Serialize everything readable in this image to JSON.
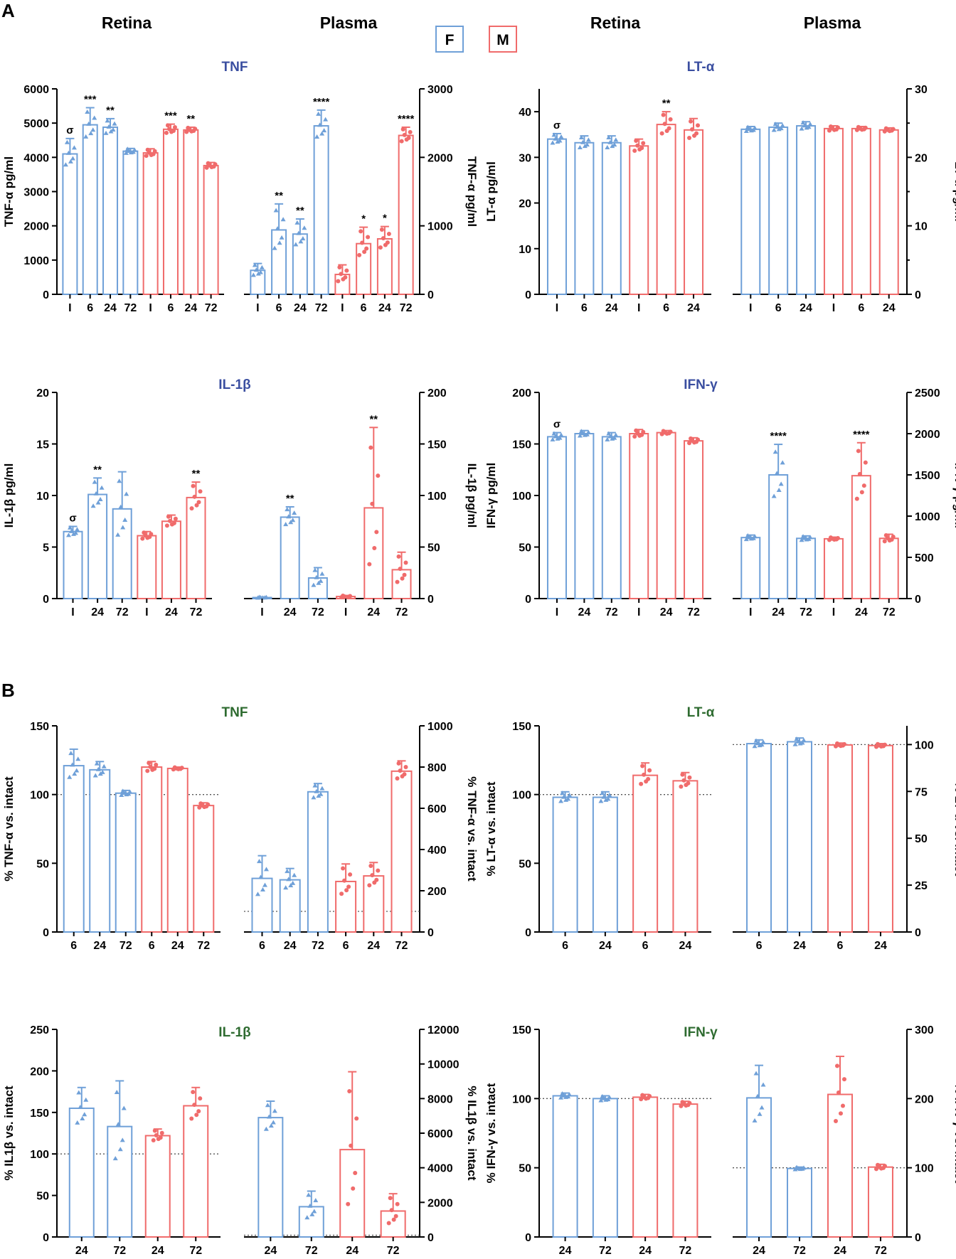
{
  "figure": {
    "panel_labels": [
      "A",
      "B"
    ],
    "column_headers": [
      "Retina",
      "Plasma",
      "Retina",
      "Plasma"
    ],
    "legend": [
      {
        "label": "F",
        "color": "#6fa0d8"
      },
      {
        "label": "M",
        "color": "#f06b6b"
      }
    ],
    "colors": {
      "female": "#6fa0d8",
      "male": "#f06b6b",
      "title_blue": "#3a4ea0",
      "title_green": "#2e6b30"
    }
  },
  "chart_data": [
    {
      "id": "A-TNF",
      "type": "bar",
      "title": "TNF",
      "title_color": "blue",
      "left": {
        "ylabel": "TNF-α pg/ml",
        "ylim": [
          0,
          6000
        ],
        "ticks": [
          0,
          1000,
          2000,
          3000,
          4000,
          5000,
          6000
        ],
        "categories": [
          "I",
          "6",
          "24",
          "72",
          "I",
          "6",
          "24",
          "72"
        ],
        "sex": [
          "F",
          "F",
          "F",
          "F",
          "M",
          "M",
          "M",
          "M"
        ],
        "values": [
          4100,
          4950,
          4880,
          4180,
          4130,
          4820,
          4800,
          3760
        ],
        "err": [
          450,
          500,
          250,
          80,
          120,
          150,
          80,
          90
        ],
        "sig": [
          "σ",
          "***",
          "**",
          "",
          "",
          "***",
          "**",
          ""
        ]
      },
      "right": {
        "ylabel": "TNF-α pg/ml",
        "ylim": [
          0,
          3000
        ],
        "ticks": [
          0,
          1000,
          2000,
          3000
        ],
        "categories": [
          "I",
          "6",
          "24",
          "72",
          "I",
          "6",
          "24",
          "72"
        ],
        "sex": [
          "F",
          "F",
          "F",
          "F",
          "M",
          "M",
          "M",
          "M"
        ],
        "values": [
          350,
          940,
          880,
          2460,
          290,
          740,
          810,
          2320
        ],
        "err": [
          100,
          380,
          220,
          230,
          140,
          240,
          180,
          120
        ],
        "sig": [
          "",
          "**",
          "**",
          "****",
          "",
          "*",
          "*",
          "****"
        ]
      }
    },
    {
      "id": "A-LTa",
      "type": "bar",
      "title": "LT-α",
      "title_color": "blue",
      "left": {
        "ylabel": "LT-α pg/ml",
        "ylim": [
          0,
          45
        ],
        "ticks": [
          0,
          10,
          20,
          30,
          40
        ],
        "categories": [
          "I",
          "6",
          "24",
          "I",
          "6",
          "24"
        ],
        "sex": [
          "F",
          "F",
          "F",
          "M",
          "M",
          "M"
        ],
        "values": [
          34,
          33.2,
          33.2,
          32.5,
          37.2,
          36
        ],
        "err": [
          1.2,
          1.5,
          1.5,
          1.5,
          2.8,
          2.5
        ],
        "sig": [
          "σ",
          "",
          "",
          "",
          "**",
          ""
        ]
      },
      "right": {
        "ylabel": "LT-α pg/ml",
        "ylim": [
          0,
          30
        ],
        "ticks": [
          0,
          10,
          20,
          30
        ],
        "categories": [
          "I",
          "6",
          "24",
          "I",
          "6",
          "24"
        ],
        "sex": [
          "F",
          "F",
          "F",
          "M",
          "M",
          "M"
        ],
        "values": [
          24.1,
          24.4,
          24.6,
          24.2,
          24.2,
          24.0
        ],
        "err": [
          0.4,
          0.6,
          0.6,
          0.4,
          0.3,
          0.3
        ],
        "sig": [
          "",
          "",
          "",
          "",
          "",
          ""
        ]
      }
    },
    {
      "id": "A-IL1b",
      "type": "bar",
      "title": "IL-1β",
      "title_color": "blue",
      "left": {
        "ylabel": "IL-1β pg/ml",
        "ylim": [
          0,
          20
        ],
        "ticks": [
          0,
          5,
          10,
          15,
          20
        ],
        "categories": [
          "I",
          "24",
          "72",
          "I",
          "24",
          "72"
        ],
        "sex": [
          "F",
          "F",
          "F",
          "M",
          "M",
          "M"
        ],
        "values": [
          6.5,
          10.1,
          8.7,
          6.1,
          7.5,
          9.8
        ],
        "err": [
          0.5,
          1.6,
          3.6,
          0.4,
          0.6,
          1.5
        ],
        "sig": [
          "σ",
          "**",
          "",
          "",
          "",
          "**"
        ]
      },
      "right": {
        "ylabel": "IL-1β pg/ml",
        "ylim": [
          0,
          200
        ],
        "ticks": [
          0,
          50,
          100,
          150,
          200
        ],
        "categories": [
          "I",
          "24",
          "72",
          "I",
          "24",
          "72"
        ],
        "sex": [
          "F",
          "F",
          "F",
          "M",
          "M",
          "M"
        ],
        "values": [
          1,
          79,
          20,
          2,
          88,
          28
        ],
        "err": [
          0.5,
          10,
          10,
          1,
          78,
          17
        ],
        "sig": [
          "",
          "**",
          "",
          "",
          "**",
          ""
        ]
      }
    },
    {
      "id": "A-IFNg",
      "type": "bar",
      "title": "IFN-γ",
      "title_color": "blue",
      "left": {
        "ylabel": "IFN-γ pg/ml",
        "ylim": [
          0,
          200
        ],
        "ticks": [
          0,
          50,
          100,
          150,
          200
        ],
        "categories": [
          "I",
          "24",
          "72",
          "I",
          "24",
          "72"
        ],
        "sex": [
          "F",
          "F",
          "F",
          "M",
          "M",
          "M"
        ],
        "values": [
          157,
          160,
          157,
          160,
          161,
          153
        ],
        "err": [
          4,
          3,
          4,
          4,
          2,
          3
        ],
        "sig": [
          "σ",
          "",
          "",
          "",
          "",
          ""
        ]
      },
      "right": {
        "ylabel": "IFN-γ pg/ml",
        "ylim": [
          0,
          2500
        ],
        "ticks": [
          0,
          500,
          1000,
          1500,
          2000,
          2500
        ],
        "categories": [
          "I",
          "24",
          "72",
          "I",
          "24",
          "72"
        ],
        "sex": [
          "F",
          "F",
          "F",
          "M",
          "M",
          "M"
        ],
        "values": [
          740,
          1500,
          730,
          725,
          1490,
          730
        ],
        "err": [
          30,
          370,
          30,
          20,
          400,
          50
        ],
        "sig": [
          "",
          "****",
          "",
          "",
          "****",
          ""
        ]
      }
    },
    {
      "id": "B-TNF",
      "type": "bar",
      "title": "TNF",
      "title_color": "green",
      "left": {
        "ylabel": "% TNF-α vs. intact",
        "ylim": [
          0,
          150
        ],
        "ticks": [
          0,
          50,
          100,
          150
        ],
        "ref": 100,
        "categories": [
          "6",
          "24",
          "72",
          "6",
          "24",
          "72"
        ],
        "sex": [
          "F",
          "F",
          "F",
          "M",
          "M",
          "M"
        ],
        "values": [
          121,
          118,
          101,
          120,
          119,
          92
        ],
        "err": [
          12,
          6,
          2,
          4,
          1,
          2
        ],
        "sig": [
          "",
          "",
          "",
          "",
          "",
          ""
        ]
      },
      "right": {
        "ylabel": "% TNF-α vs. intact",
        "ylim": [
          0,
          1000
        ],
        "ticks": [
          0,
          200,
          400,
          600,
          800,
          1000
        ],
        "ref": 100,
        "categories": [
          "6",
          "24",
          "72",
          "6",
          "24",
          "72"
        ],
        "sex": [
          "F",
          "F",
          "F",
          "M",
          "M",
          "M"
        ],
        "values": [
          260,
          253,
          680,
          245,
          272,
          780
        ],
        "err": [
          110,
          55,
          40,
          85,
          65,
          50
        ],
        "sig": [
          "",
          "",
          "",
          "",
          "",
          ""
        ]
      }
    },
    {
      "id": "B-LTa",
      "type": "bar",
      "title": "LT-α",
      "title_color": "green",
      "left": {
        "ylabel": "% LT-α vs. intact",
        "ylim": [
          0,
          150
        ],
        "ticks": [
          0,
          50,
          100,
          150
        ],
        "ref": 100,
        "categories": [
          "6",
          "24",
          "6",
          "24"
        ],
        "sex": [
          "F",
          "F",
          "M",
          "M"
        ],
        "values": [
          98,
          98,
          114,
          110
        ],
        "err": [
          4,
          4,
          9,
          6
        ],
        "sig": [
          "",
          "",
          "",
          ""
        ]
      },
      "right": {
        "ylabel": "% LT-α vs. intact",
        "ylim": [
          0,
          110
        ],
        "ticks": [
          0,
          25,
          50,
          75,
          100
        ],
        "ref": 100,
        "categories": [
          "6",
          "24",
          "6",
          "24"
        ],
        "sex": [
          "F",
          "F",
          "M",
          "M"
        ],
        "values": [
          100.5,
          101.5,
          99.8,
          99.5
        ],
        "err": [
          2,
          2,
          1,
          1
        ],
        "sig": [
          "",
          "",
          "",
          ""
        ]
      }
    },
    {
      "id": "B-IL1b",
      "type": "bar",
      "title": "IL-1β",
      "title_color": "green",
      "left": {
        "ylabel": "% IL1β vs. intact",
        "ylim": [
          0,
          250
        ],
        "ticks": [
          0,
          50,
          100,
          150,
          200,
          250
        ],
        "ref": 100,
        "categories": [
          "24",
          "72",
          "24",
          "72"
        ],
        "sex": [
          "F",
          "F",
          "M",
          "M"
        ],
        "values": [
          155,
          133,
          122,
          158
        ],
        "err": [
          25,
          55,
          8,
          22
        ],
        "sig": [
          "",
          "",
          "",
          ""
        ]
      },
      "right": {
        "ylabel": "% IL1β vs. intact",
        "ylim": [
          0,
          12000
        ],
        "ticks": [
          0,
          2000,
          4000,
          6000,
          8000,
          10000,
          12000
        ],
        "ref": 100,
        "categories": [
          "24",
          "72",
          "24",
          "72"
        ],
        "sex": [
          "F",
          "F",
          "M",
          "M"
        ],
        "values": [
          6900,
          1750,
          5050,
          1500
        ],
        "err": [
          950,
          900,
          4500,
          1000
        ],
        "sig": [
          "",
          "",
          "",
          ""
        ]
      }
    },
    {
      "id": "B-IFNg",
      "type": "bar",
      "title": "IFN-γ",
      "title_color": "green",
      "left": {
        "ylabel": "% IFN-γ vs. intact",
        "ylim": [
          0,
          150
        ],
        "ticks": [
          0,
          50,
          100,
          150
        ],
        "ref": 100,
        "categories": [
          "24",
          "72",
          "24",
          "72"
        ],
        "sex": [
          "F",
          "F",
          "M",
          "M"
        ],
        "values": [
          102,
          100,
          101,
          96
        ],
        "err": [
          2,
          2,
          2,
          2
        ],
        "sig": [
          "",
          "",
          "",
          ""
        ]
      },
      "right": {
        "ylabel": "% IFN-γ vs. intact",
        "ylim": [
          0,
          300
        ],
        "ticks": [
          0,
          100,
          200,
          300
        ],
        "ref": 100,
        "categories": [
          "24",
          "72",
          "24",
          "72"
        ],
        "sex": [
          "F",
          "F",
          "M",
          "M"
        ],
        "values": [
          201,
          99,
          206,
          101
        ],
        "err": [
          47,
          2,
          55,
          4
        ],
        "sig": [
          "",
          "",
          "",
          ""
        ]
      }
    }
  ]
}
